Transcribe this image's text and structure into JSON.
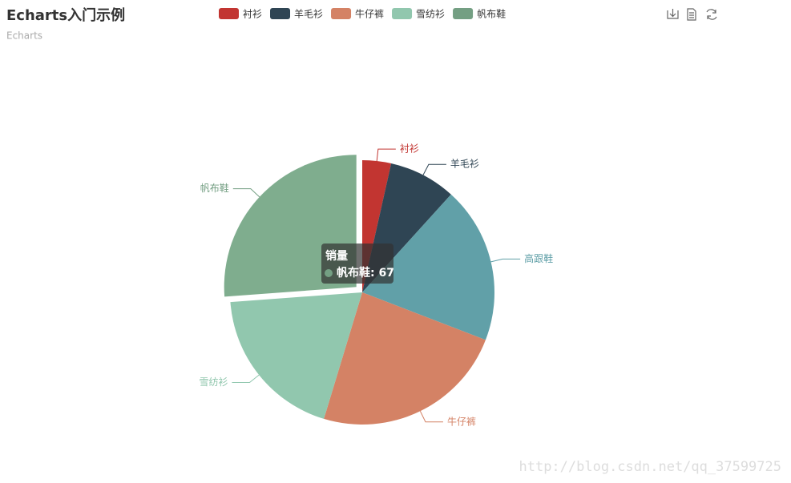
{
  "title": "Echarts入门示例",
  "subtitle": "Echarts",
  "watermark": "http://blog.csdn.net/qq_37599725",
  "chart_data": {
    "type": "pie",
    "series_name": "销量",
    "categories": [
      "衬衫",
      "羊毛衫",
      "高跟鞋",
      "牛仔裤",
      "雪纺衫",
      "帆布鞋"
    ],
    "values": [
      9,
      21,
      49,
      61,
      49,
      67
    ],
    "colors": [
      "#c23531",
      "#2f4554",
      "#61a0a8",
      "#d48265",
      "#91c7ae",
      "#749f83"
    ],
    "legend": [
      "衬衫",
      "羊毛衫",
      "牛仔裤",
      "雪纺衫",
      "帆布鞋"
    ],
    "tooltip": {
      "title": "销量",
      "item": "帆布鞋: 67"
    }
  }
}
